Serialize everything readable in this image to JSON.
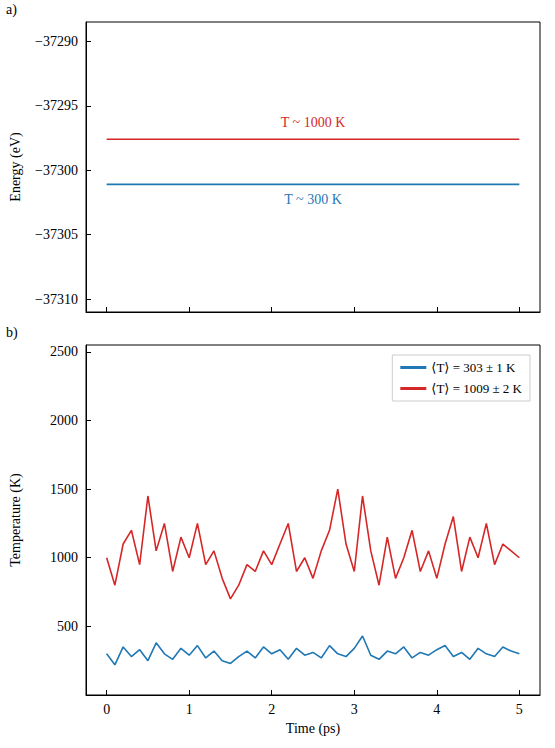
{
  "chart_data": [
    {
      "type": "line",
      "label": "a)",
      "ylabel": "Energy (eV)",
      "x": [
        0,
        5
      ],
      "xlim": [
        -0.25,
        5.25
      ],
      "xticks": [
        0,
        1,
        2,
        3,
        4,
        5
      ],
      "ylim": [
        -37311,
        -37288.5
      ],
      "yticks": [
        {
          "value": -37310,
          "label": "−37310"
        },
        {
          "value": -37305,
          "label": "−37305"
        },
        {
          "value": -37300,
          "label": "−37300"
        },
        {
          "value": -37295,
          "label": "−37295"
        },
        {
          "value": -37290,
          "label": "−37290"
        }
      ],
      "tick_labels": "y",
      "grid": false,
      "series": [
        {
          "color": "#d62728",
          "annotation": "T ~ 1000 K",
          "values": [
            -37297.6,
            -37297.6
          ]
        },
        {
          "color": "#1f77b4",
          "annotation": "T ~ 300 K",
          "values": [
            -37301.1,
            -37301.1
          ]
        }
      ]
    },
    {
      "type": "line",
      "label": "b)",
      "xlabel": "Time (ps)",
      "ylabel": "Temperature (K)",
      "x": [
        0,
        0.1,
        0.2,
        0.3,
        0.4,
        0.5,
        0.6,
        0.7,
        0.8,
        0.9,
        1.0,
        1.1,
        1.2,
        1.3,
        1.4,
        1.5,
        1.6,
        1.7,
        1.8,
        1.9,
        2.0,
        2.1,
        2.2,
        2.3,
        2.4,
        2.5,
        2.6,
        2.7,
        2.8,
        2.9,
        3.0,
        3.1,
        3.2,
        3.3,
        3.4,
        3.5,
        3.6,
        3.7,
        3.8,
        3.9,
        4.0,
        4.1,
        4.2,
        4.3,
        4.4,
        4.5,
        4.6,
        4.7,
        4.8,
        4.9,
        5.0
      ],
      "xlim": [
        -0.25,
        5.25
      ],
      "xticks": [
        0,
        1,
        2,
        3,
        4,
        5
      ],
      "ylim": [
        0,
        2550
      ],
      "yticks": [
        500,
        1000,
        1500,
        2000,
        2500
      ],
      "grid": false,
      "legend": "upper right",
      "series": [
        {
          "name": "⟨T⟩ = 303 ± 1 K",
          "color": "#1f77b4",
          "values": [
            300,
            220,
            350,
            280,
            330,
            250,
            380,
            300,
            260,
            340,
            290,
            360,
            270,
            320,
            250,
            230,
            280,
            320,
            270,
            350,
            300,
            330,
            260,
            340,
            290,
            310,
            270,
            360,
            300,
            280,
            340,
            430,
            290,
            260,
            320,
            300,
            350,
            270,
            310,
            290,
            330,
            360,
            280,
            310,
            260,
            340,
            300,
            280,
            350,
            320,
            300
          ]
        },
        {
          "name": "⟨T⟩ = 1009 ± 2 K",
          "color": "#d62728",
          "values": [
            1000,
            800,
            1100,
            1200,
            950,
            1450,
            1050,
            1250,
            900,
            1150,
            1000,
            1250,
            950,
            1050,
            850,
            700,
            800,
            950,
            900,
            1050,
            950,
            1100,
            1250,
            900,
            1000,
            850,
            1050,
            1200,
            1500,
            1100,
            900,
            1450,
            1050,
            800,
            1150,
            850,
            1000,
            1200,
            900,
            1050,
            850,
            1100,
            1300,
            900,
            1150,
            1000,
            1250,
            950,
            1100,
            1050,
            1000
          ]
        }
      ]
    }
  ]
}
